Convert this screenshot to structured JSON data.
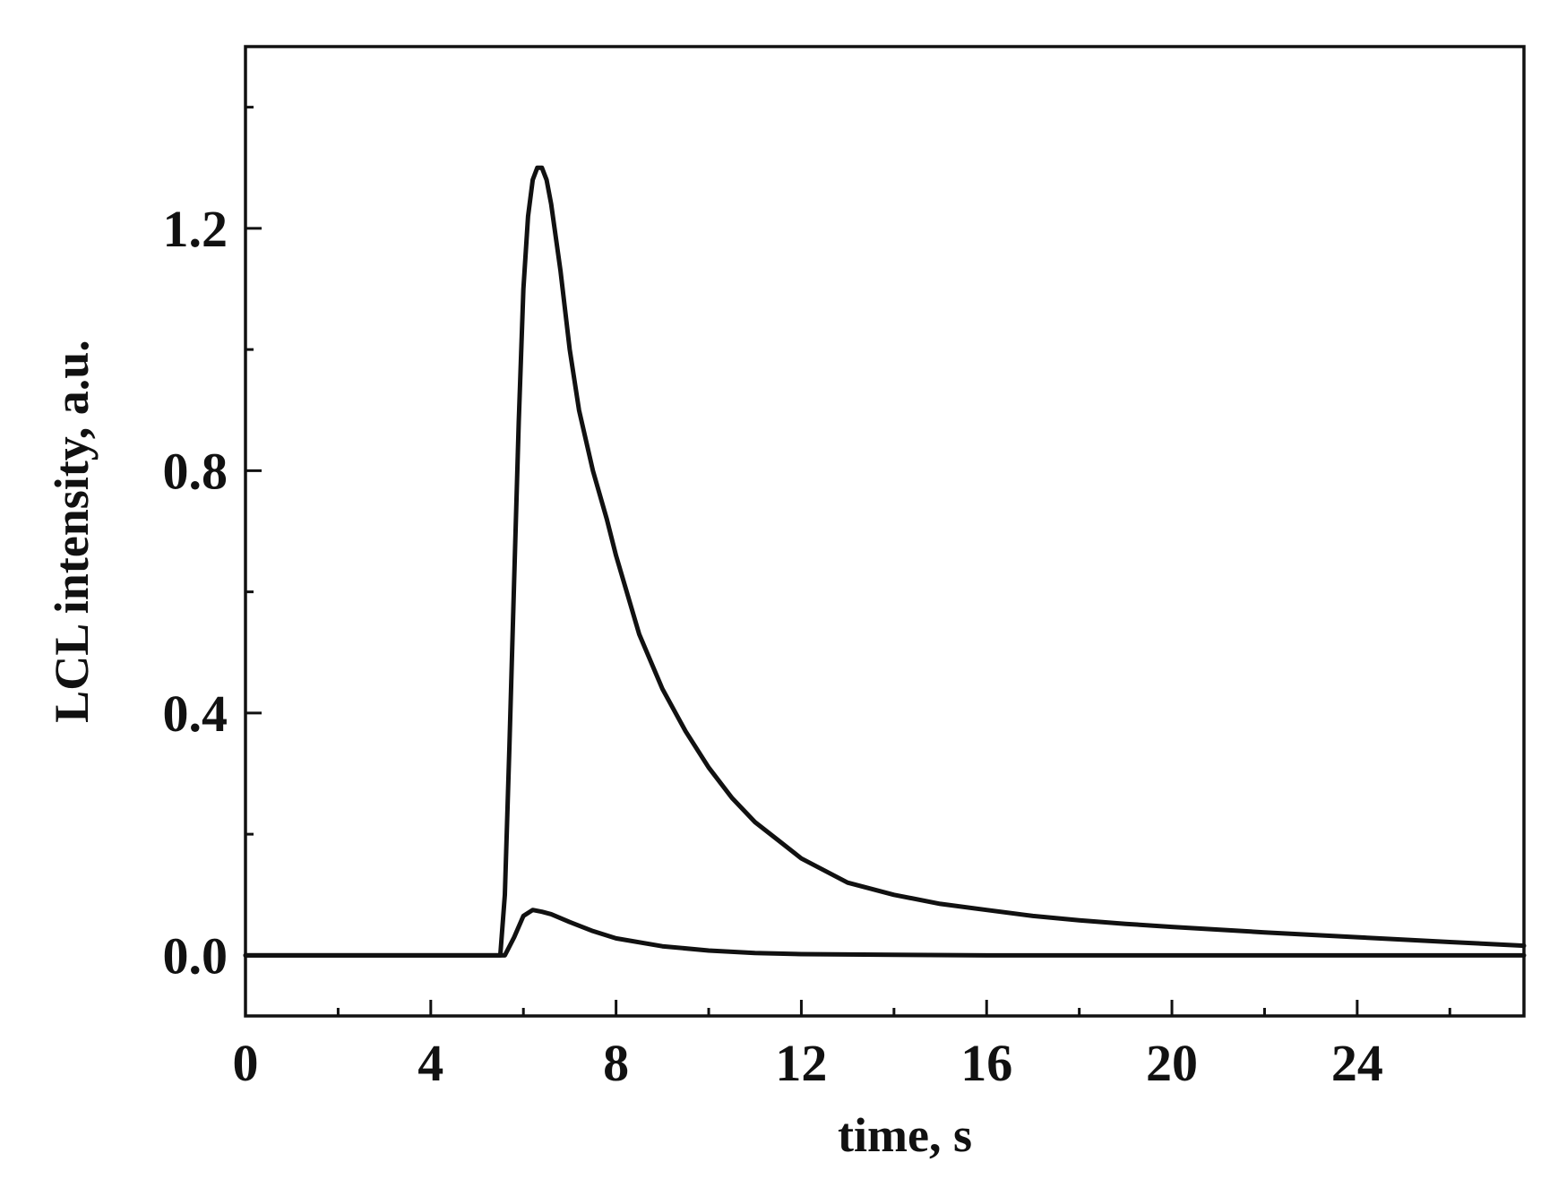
{
  "chart_data": {
    "type": "line",
    "title": "",
    "xlabel": "time, s",
    "ylabel": "LCL intensity, a.u.",
    "xlim": [
      0,
      27.6
    ],
    "ylim": [
      -0.1,
      1.5
    ],
    "x_ticks": [
      0,
      4,
      8,
      12,
      16,
      20,
      24
    ],
    "x_tick_labels": [
      "0",
      "4",
      "8",
      "12",
      "16",
      "20",
      "24"
    ],
    "y_ticks": [
      0.0,
      0.4,
      0.8,
      1.2
    ],
    "y_tick_labels": [
      "0.0",
      "0.4",
      "0.8",
      "1.2"
    ],
    "grid": false,
    "legend": "none",
    "series": [
      {
        "color": "#111111",
        "x": [
          0,
          5.5,
          5.6,
          5.7,
          5.8,
          5.9,
          6.0,
          6.1,
          6.2,
          6.3,
          6.4,
          6.5,
          6.6,
          6.8,
          7.0,
          7.2,
          7.5,
          7.8,
          8.0,
          8.5,
          9.0,
          9.5,
          10.0,
          10.5,
          11.0,
          11.5,
          12.0,
          13.0,
          14.0,
          15.0,
          16.0,
          17.0,
          18.0,
          19.0,
          20.0,
          22.0,
          24.0,
          26.0,
          27.6
        ],
        "values": [
          0.0,
          0.0,
          0.1,
          0.35,
          0.62,
          0.88,
          1.1,
          1.22,
          1.28,
          1.3,
          1.3,
          1.28,
          1.24,
          1.13,
          1.0,
          0.9,
          0.8,
          0.72,
          0.66,
          0.53,
          0.44,
          0.37,
          0.31,
          0.26,
          0.22,
          0.19,
          0.16,
          0.12,
          0.1,
          0.085,
          0.075,
          0.065,
          0.058,
          0.052,
          0.047,
          0.038,
          0.03,
          0.022,
          0.016
        ]
      },
      {
        "color": "#111111",
        "x": [
          0,
          5.6,
          5.8,
          6.0,
          6.2,
          6.4,
          6.6,
          7.0,
          7.5,
          8.0,
          9.0,
          10.0,
          11.0,
          12.0,
          14.0,
          16.0,
          20.0,
          24.0,
          27.6
        ],
        "values": [
          0.0,
          0.0,
          0.03,
          0.065,
          0.075,
          0.072,
          0.068,
          0.055,
          0.04,
          0.028,
          0.015,
          0.008,
          0.004,
          0.002,
          0.001,
          0.0,
          0.0,
          0.0,
          0.0
        ]
      }
    ]
  }
}
